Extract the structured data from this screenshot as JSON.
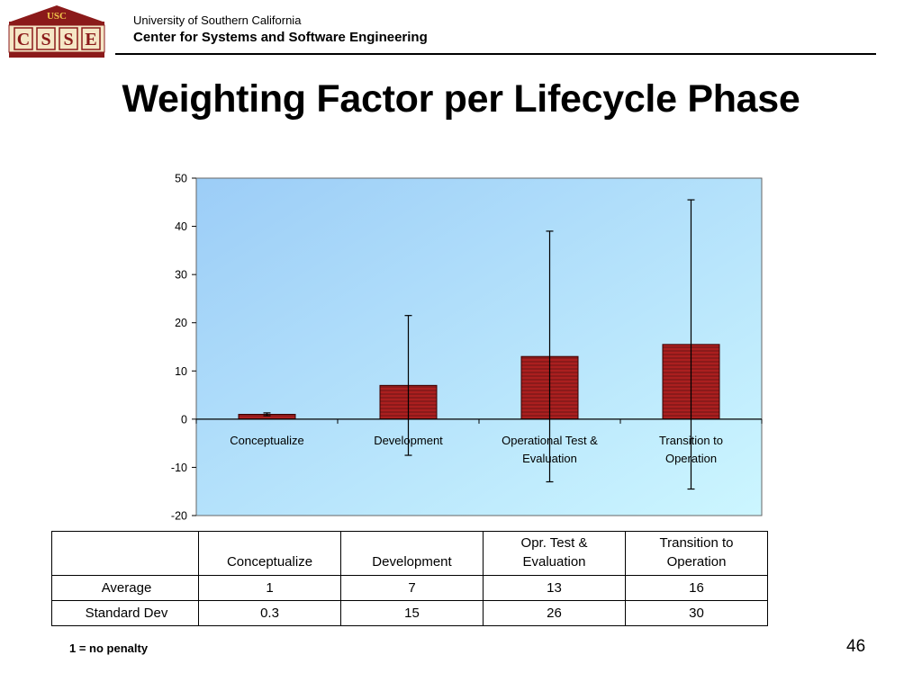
{
  "header": {
    "logo_top": "USC",
    "logo_letters": [
      "C",
      "S",
      "S",
      "E"
    ],
    "university": "University of Southern California",
    "center": "Center for Systems and Software Engineering"
  },
  "slide": {
    "title": "Weighting Factor per Lifecycle Phase",
    "footnote": "1 = no penalty",
    "page_number": "46"
  },
  "chart_data": {
    "type": "bar",
    "categories": [
      [
        "Conceptualize"
      ],
      [
        "Development"
      ],
      [
        "Operational Test &",
        "Evaluation"
      ],
      [
        "Transition to",
        "Operation"
      ]
    ],
    "series": [
      {
        "values": [
          1,
          7,
          13,
          15.5
        ],
        "error": [
          0.3,
          14.5,
          26,
          30
        ]
      }
    ],
    "ylim": [
      -20,
      50
    ],
    "yticks": [
      50,
      40,
      30,
      20,
      10,
      0,
      -10,
      -20
    ],
    "grid": false,
    "colors": {
      "bar": "#8b1a1a",
      "bar_stripe": "#b32020",
      "bg_start": "#9ccdf7",
      "bg_end": "#ccf6ff"
    }
  },
  "table": {
    "headers": [
      [
        "Conceptualize"
      ],
      [
        "Development"
      ],
      [
        "Opr. Test &",
        "Evaluation"
      ],
      [
        "Transition to",
        "Operation"
      ]
    ],
    "rows": [
      {
        "label": "Average",
        "values": [
          "1",
          "7",
          "13",
          "16"
        ]
      },
      {
        "label": "Standard Dev",
        "values": [
          "0.3",
          "15",
          "26",
          "30"
        ]
      }
    ]
  }
}
